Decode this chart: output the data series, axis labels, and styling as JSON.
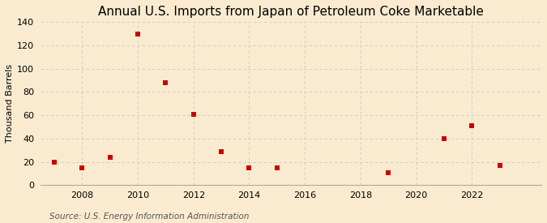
{
  "title": "Annual U.S. Imports from Japan of Petroleum Coke Marketable",
  "ylabel": "Thousand Barrels",
  "source": "Source: U.S. Energy Information Administration",
  "background_color": "#faebd0",
  "marker_color": "#cc0000",
  "years": [
    2007,
    2008,
    2009,
    2010,
    2011,
    2012,
    2013,
    2014,
    2015,
    2019,
    2021,
    2022,
    2023
  ],
  "values": [
    20,
    15,
    24,
    130,
    88,
    61,
    29,
    15,
    15,
    11,
    40,
    51,
    17
  ],
  "xlim": [
    2006.5,
    2024.5
  ],
  "ylim": [
    0,
    140
  ],
  "yticks": [
    0,
    20,
    40,
    60,
    80,
    100,
    120,
    140
  ],
  "xticks": [
    2008,
    2010,
    2012,
    2014,
    2016,
    2018,
    2020,
    2022
  ],
  "title_fontsize": 11,
  "label_fontsize": 8,
  "tick_fontsize": 8,
  "source_fontsize": 7.5,
  "marker_size": 4
}
